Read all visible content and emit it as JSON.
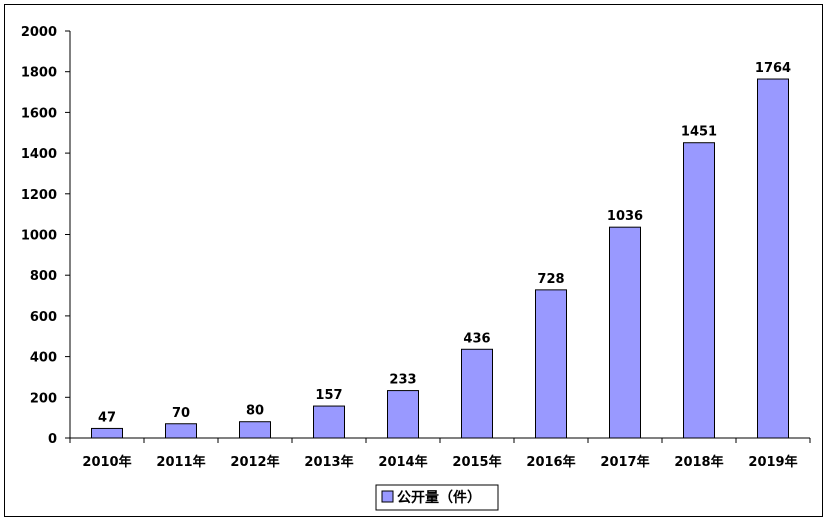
{
  "chart_data": {
    "type": "bar",
    "title": "",
    "xlabel": "",
    "ylabel": "",
    "categories": [
      "2010年",
      "2011年",
      "2012年",
      "2013年",
      "2014年",
      "2015年",
      "2016年",
      "2017年",
      "2018年",
      "2019年"
    ],
    "series": [
      {
        "name": "公开量（件）",
        "values": [
          47,
          70,
          80,
          157,
          233,
          436,
          728,
          1036,
          1451,
          1764
        ],
        "color": "#9999FF"
      }
    ],
    "ylim": [
      0,
      2000
    ],
    "yticks": [
      "0",
      "200",
      "400",
      "600",
      "800",
      "1000",
      "1200",
      "1400",
      "1600",
      "1800",
      "2000"
    ],
    "data_labels": [
      "47",
      "70",
      "80",
      "157",
      "233",
      "436",
      "728",
      "1036",
      "1451",
      "1764"
    ],
    "grid": false,
    "legend_position": "bottom",
    "bar_stroke": "#000000"
  }
}
